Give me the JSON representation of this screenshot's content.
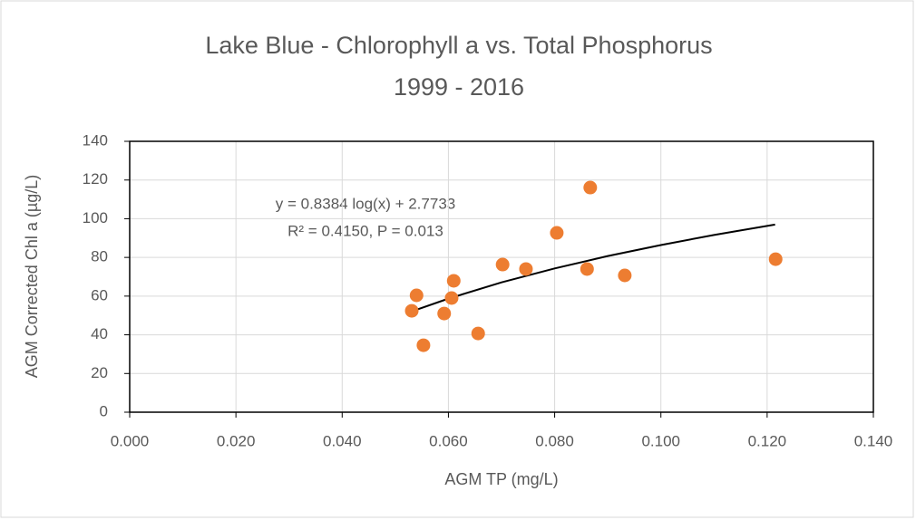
{
  "chart_data": {
    "type": "scatter",
    "title": "Lake Blue - Chlorophyll a vs. Total Phosphorus",
    "subtitle": "1999 - 2016",
    "x_label": "AGM TP (mg/L)",
    "y_label": "AGM Corrected Chl a (µg/L)",
    "annotations": [
      "y = 0.8384 log(x) + 2.7733",
      "R² = 0.4150, P = 0.013"
    ],
    "series": [
      {
        "color": "#ed7d31",
        "x": [
          0.0531,
          0.054,
          0.0553,
          0.0592,
          0.0606,
          0.061,
          0.0656,
          0.0702,
          0.0746,
          0.0804,
          0.0861,
          0.0867,
          0.0932,
          0.1216
        ],
        "values": [
          52.4,
          60.4,
          34.6,
          51.0,
          59.0,
          67.9,
          40.7,
          76.3,
          74.0,
          92.7,
          74.0,
          116.1,
          70.7,
          79.1
        ]
      }
    ],
    "trendline": {
      "color": "#000000",
      "x": [
        0.053,
        0.06,
        0.07,
        0.08,
        0.09,
        0.1,
        0.11,
        0.1215
      ],
      "values": [
        52,
        58.7,
        67.1,
        74.3,
        80.7,
        86.4,
        91.6,
        97
      ]
    },
    "xlim": [
      0,
      0.14
    ],
    "xticks": [
      {
        "value": 0,
        "label": "0.000"
      },
      {
        "value": 0.02,
        "label": "0.020"
      },
      {
        "value": 0.04,
        "label": "0.040"
      },
      {
        "value": 0.06,
        "label": "0.060"
      },
      {
        "value": 0.08,
        "label": "0.080"
      },
      {
        "value": 0.1,
        "label": "0.100"
      },
      {
        "value": 0.12,
        "label": "0.120"
      },
      {
        "value": 0.14,
        "label": "0.140"
      }
    ],
    "ylim": [
      0,
      140
    ],
    "yticks": [
      0,
      20,
      40,
      60,
      80,
      100,
      120,
      140
    ],
    "grid": true
  }
}
